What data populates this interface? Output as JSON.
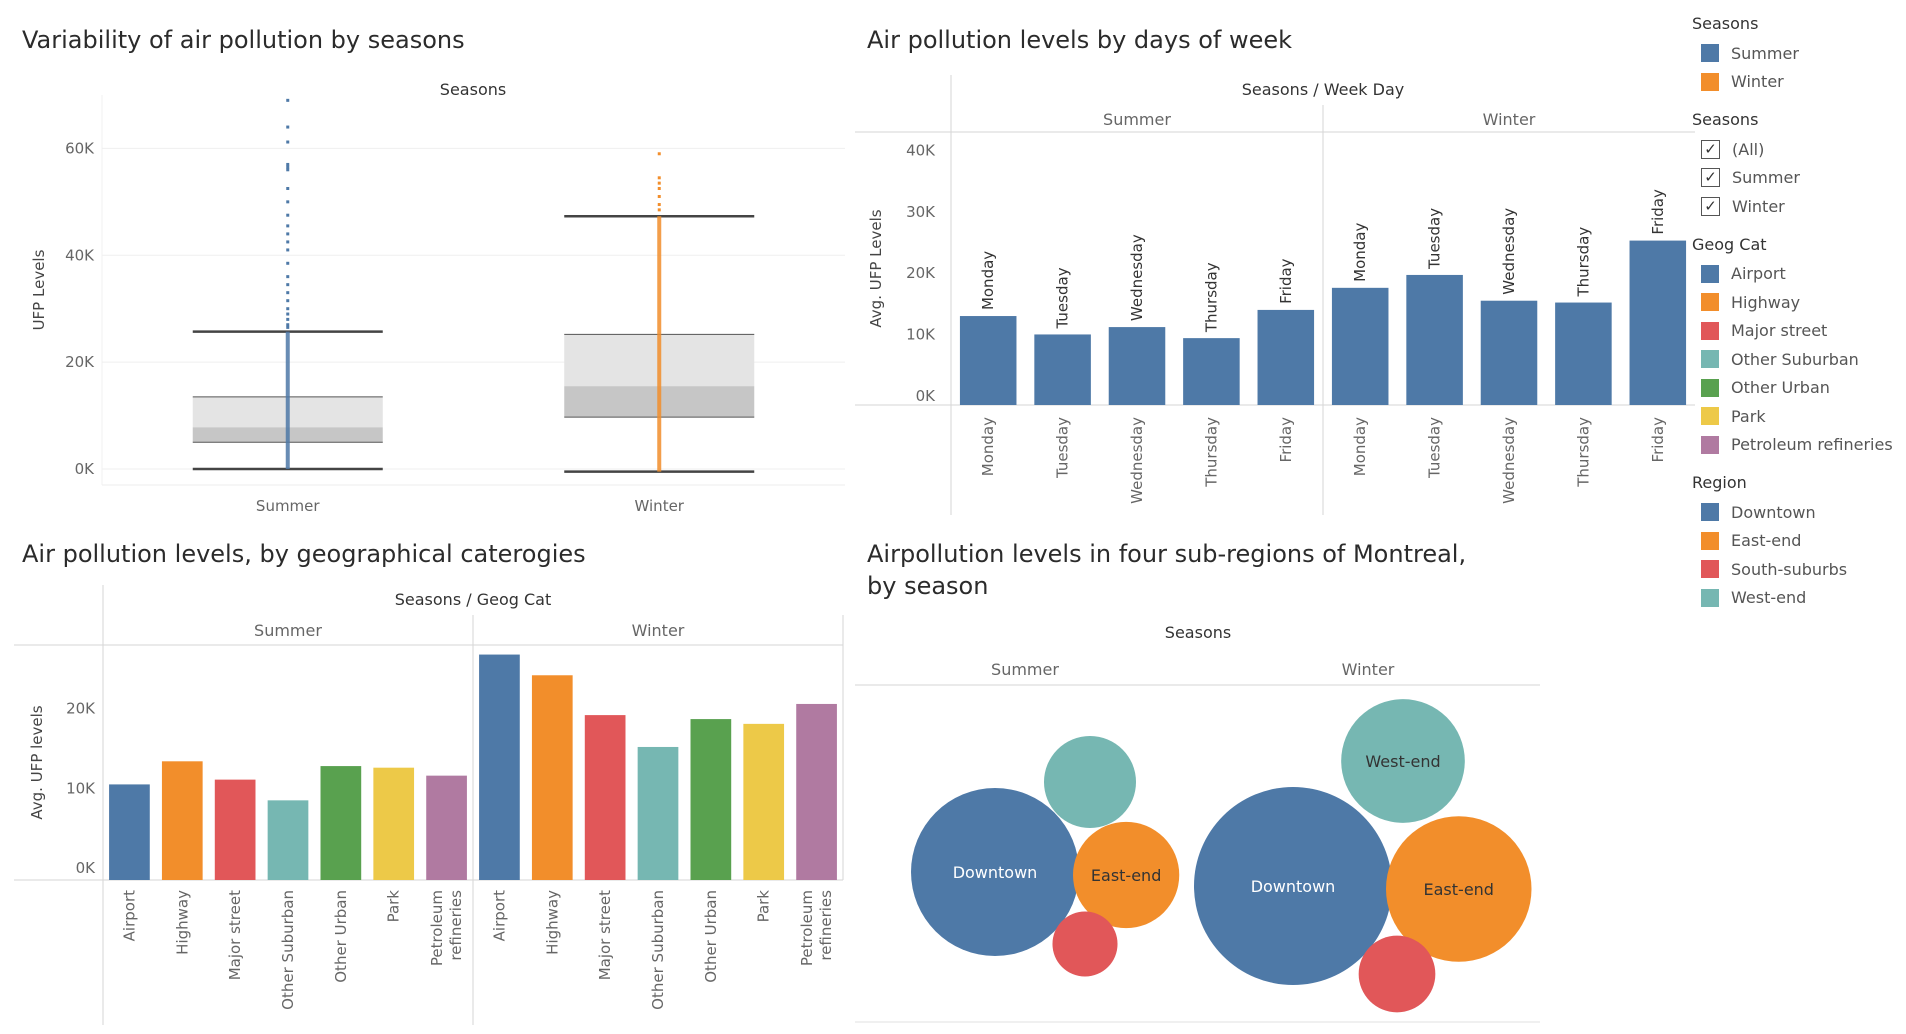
{
  "titles": {
    "boxplot": "Variability of air pollution by seasons",
    "weekday": "Air pollution levels by days of week",
    "geog": "Air pollution levels, by geographical caterogies",
    "region": "Airpollution levels in four sub-regions of Montreal, by season"
  },
  "legend": {
    "seasons_color": {
      "title": "Seasons",
      "items": [
        {
          "label": "Summer",
          "color": "#4e79a7"
        },
        {
          "label": "Winter",
          "color": "#f28e2b"
        }
      ]
    },
    "seasons_filter": {
      "title": "Seasons",
      "items": [
        {
          "label": "(All)",
          "checked": true
        },
        {
          "label": "Summer",
          "checked": true
        },
        {
          "label": "Winter",
          "checked": true
        }
      ]
    },
    "geog": {
      "title": "Geog Cat",
      "items": [
        {
          "label": "Airport",
          "color": "#4e79a7"
        },
        {
          "label": "Highway",
          "color": "#f28e2b"
        },
        {
          "label": "Major street",
          "color": "#e15759"
        },
        {
          "label": "Other Suburban",
          "color": "#76b7b2"
        },
        {
          "label": "Other Urban",
          "color": "#59a14f"
        },
        {
          "label": "Park",
          "color": "#edc948"
        },
        {
          "label": "Petroleum refineries",
          "color": "#b07aa1"
        }
      ]
    },
    "region": {
      "title": "Region",
      "items": [
        {
          "label": "Downtown",
          "color": "#4e79a7"
        },
        {
          "label": "East-end",
          "color": "#f28e2b"
        },
        {
          "label": "South-suburbs",
          "color": "#e15759"
        },
        {
          "label": "West-end",
          "color": "#76b7b2"
        }
      ]
    }
  },
  "chart_data": [
    {
      "id": "boxplot",
      "type": "box",
      "column_header": "Seasons",
      "ylabel": "UFP Levels",
      "ylim": [
        -3000,
        70000
      ],
      "yticks": [
        0,
        20000,
        40000,
        60000
      ],
      "ytick_labels": [
        "0K",
        "20K",
        "40K",
        "60K"
      ],
      "categories": [
        "Summer",
        "Winter"
      ],
      "series": [
        {
          "name": "Summer",
          "color": "#4e79a7",
          "min": 0,
          "q1": 5000,
          "median": 7800,
          "q3": 13500,
          "max": 25700,
          "outliers": [
            69000,
            64000,
            61200,
            57000,
            56500,
            56000,
            52500,
            50000,
            47500,
            45500,
            44000,
            42500,
            41000,
            38500,
            36000,
            34500,
            33000,
            31500,
            30000,
            29000,
            28000,
            27000,
            26500
          ]
        },
        {
          "name": "Winter",
          "color": "#f28e2b",
          "min": -500,
          "q1": 9700,
          "median": 15500,
          "q3": 25200,
          "max": 47300,
          "outliers": [
            59000,
            54500,
            53500,
            52500,
            51000,
            49500,
            48500
          ]
        }
      ]
    },
    {
      "id": "weekday",
      "type": "bar",
      "column_header": "Seasons / Week Day",
      "ylabel": "Avg. UFP Levels",
      "ylim": [
        -1500,
        43000
      ],
      "yticks": [
        0,
        10000,
        20000,
        30000,
        40000
      ],
      "ytick_labels": [
        "0K",
        "10K",
        "20K",
        "30K",
        "40K"
      ],
      "groups": [
        "Summer",
        "Winter"
      ],
      "categories": [
        "Monday",
        "Tuesday",
        "Wednesday",
        "Thursday",
        "Friday"
      ],
      "series": [
        {
          "name": "Summer",
          "color": "#4e79a7",
          "values": [
            13000,
            10000,
            11200,
            9400,
            14000
          ]
        },
        {
          "name": "Winter",
          "color": "#4e79a7",
          "values": [
            17600,
            19700,
            15500,
            15200,
            25300
          ]
        }
      ]
    },
    {
      "id": "geog",
      "type": "bar",
      "column_header": "Seasons / Geog Cat",
      "ylabel": "Avg. UFP levels",
      "ylim": [
        -1500,
        28000
      ],
      "yticks": [
        0,
        10000,
        20000
      ],
      "ytick_labels": [
        "0K",
        "10K",
        "20K"
      ],
      "groups": [
        "Summer",
        "Winter"
      ],
      "categories": [
        "Airport",
        "Highway",
        "Major street",
        "Other Suburban",
        "Other Urban",
        "Park",
        "Petroleum refineries"
      ],
      "category_label_lines": [
        [
          "Airport"
        ],
        [
          "Highway"
        ],
        [
          "Major street"
        ],
        [
          "Other Suburban"
        ],
        [
          "Other Urban"
        ],
        [
          "Park"
        ],
        [
          "Petroleum",
          "refineries"
        ]
      ],
      "series": [
        {
          "name": "Summer",
          "values": [
            10500,
            13400,
            11100,
            8500,
            12800,
            12600,
            11600
          ]
        },
        {
          "name": "Winter",
          "values": [
            26800,
            24200,
            19200,
            15200,
            18700,
            18100,
            20600
          ]
        }
      ]
    },
    {
      "id": "region",
      "type": "bubble",
      "column_header": "Seasons",
      "groups": [
        "Summer",
        "Winter"
      ],
      "series": [
        {
          "name": "Summer",
          "values": {
            "Downtown": 100,
            "East-end": 40,
            "South-suburbs": 15,
            "West-end": 30
          }
        },
        {
          "name": "Winter",
          "values": {
            "Downtown": 100,
            "East-end": 54,
            "South-suburbs": 15,
            "West-end": 39
          }
        }
      ],
      "labels": {
        "Summer": [
          "Downtown",
          "East-end"
        ],
        "Winter": [
          "Downtown",
          "East-end",
          "West-end"
        ]
      }
    }
  ]
}
